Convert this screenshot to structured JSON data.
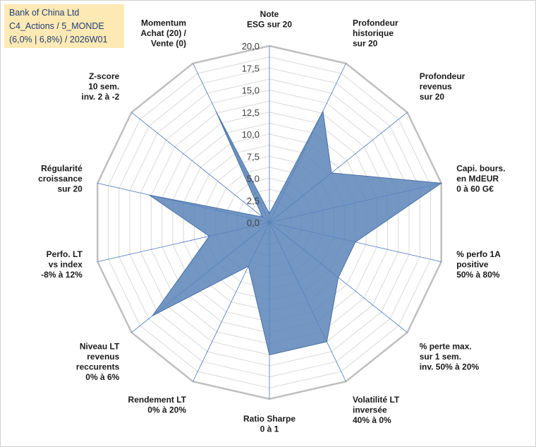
{
  "title": {
    "line1": "Bank of China Ltd",
    "line2": "C4_Actions / 5_MONDE",
    "line3": "(6,0% | 6,8%) / 2026W01"
  },
  "colors": {
    "fill": "#5b84b8",
    "stroke": "#4a72a6",
    "grid": "#d9d9d9",
    "outer_ring": "#bfbfbf",
    "spoke": "#4472c4"
  },
  "chart_data": {
    "type": "radar",
    "title": "Bank of China Ltd",
    "rmin": 0,
    "rmax": 20,
    "ticks": [
      "0,0",
      "2,5",
      "5,0",
      "7,5",
      "10,0",
      "12,5",
      "15,0",
      "17,5",
      "20,0"
    ],
    "categories": [
      [
        "Note",
        "ESG sur 20"
      ],
      [
        "Profondeur",
        "historique",
        "sur 20"
      ],
      [
        "Profondeur",
        "revenus",
        "sur 20"
      ],
      [
        "Capi. bours.",
        "en MdEUR",
        "0 à 60 G€"
      ],
      [
        "% perfo 1A",
        "positive",
        "50% à 80%"
      ],
      [
        "% perte max.",
        "sur 1 sem.",
        "inv. 50% à 20%"
      ],
      [
        "Volatilité LT",
        "inversée",
        "40% à 0%"
      ],
      [
        "Ratio Sharpe",
        "0 à 1"
      ],
      [
        "Rendement LT",
        "0% à 20%"
      ],
      [
        "Niveau LT",
        "revenus",
        "reccurents",
        "0% à 6%"
      ],
      [
        "Perfo. LT",
        "vs index",
        "-8% à 12%"
      ],
      [
        "Régularité",
        "croissance",
        "sur 20"
      ],
      [
        "Z-score",
        "10 sem.",
        "inv. 2 à -2"
      ],
      [
        "Momentum",
        "Achat (20) /",
        "Vente (0)"
      ]
    ],
    "series": [
      {
        "name": "Bank of China Ltd",
        "values": [
          1.0,
          14.0,
          9.0,
          20.0,
          10.0,
          10.0,
          15.0,
          15.0,
          5.5,
          17.0,
          7.0,
          14.0,
          1.0,
          14.0
        ]
      }
    ]
  }
}
